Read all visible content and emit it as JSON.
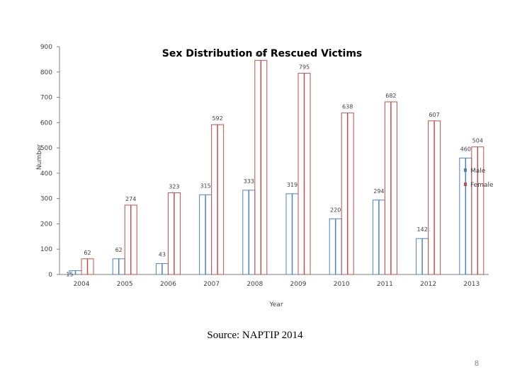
{
  "chart_data": {
    "type": "bar",
    "title": "Sex Distribution of Rescued Victims",
    "xlabel": "Year",
    "ylabel": "Number",
    "ylim": [
      0,
      900
    ],
    "yticks": [
      "0",
      "100",
      "200",
      "300",
      "400",
      "500",
      "600",
      "700",
      "800",
      "900"
    ],
    "categories": [
      "2004",
      "2005",
      "2006",
      "2007",
      "2008",
      "2009",
      "2010",
      "2011",
      "2012",
      "2013"
    ],
    "series": [
      {
        "name": "Male",
        "color": "#4f81bd",
        "values": [
          15,
          62,
          43,
          315,
          333,
          319,
          220,
          294,
          142,
          460
        ]
      },
      {
        "name": "Female",
        "color": "#c0504d",
        "values": [
          62,
          274,
          323,
          592,
          846,
          795,
          638,
          682,
          607,
          504
        ]
      }
    ],
    "value_labels": {
      "Male": [
        "15",
        "62",
        "43",
        "315",
        "333",
        "319",
        "220",
        "294",
        "142",
        "460"
      ],
      "Female": [
        "62",
        "274",
        "323",
        "592",
        "846",
        "795",
        "638",
        "682",
        "607",
        "504"
      ]
    },
    "legend_position": "right",
    "grid": false
  },
  "footer": {
    "source": "Source: NAPTIP 2014",
    "slide_number": "8"
  }
}
